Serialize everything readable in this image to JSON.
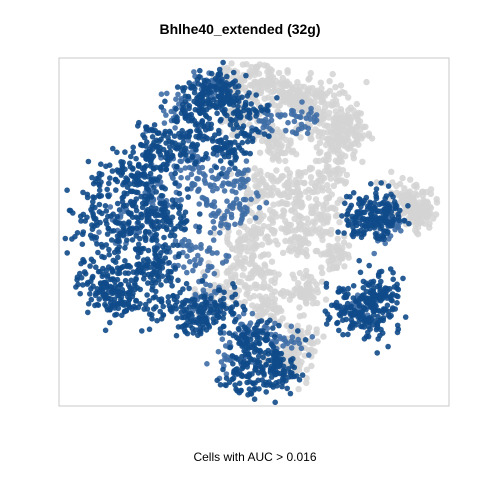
{
  "chart_data": {
    "type": "scatter",
    "title": "Bhlhe40_extended (32g)",
    "xlabel": "Cells with AUC > 0.016",
    "ylabel": "",
    "grid": false,
    "axes_ticks": false,
    "colors": {
      "active": "#0f4a8a",
      "mid": "#3f6ea6",
      "inactive": "#d4d4d4",
      "frame": "#c8c8c8"
    },
    "series": [
      {
        "color": "#d4d4d4",
        "points": [
          [
            235,
            82,
            10
          ],
          [
            260,
            78,
            9
          ],
          [
            282,
            95,
            10
          ],
          [
            300,
            98,
            12
          ],
          [
            318,
            108,
            14
          ],
          [
            335,
            118,
            14
          ],
          [
            340,
            140,
            14
          ],
          [
            328,
            165,
            12
          ],
          [
            300,
            190,
            12
          ],
          [
            282,
            210,
            14
          ],
          [
            320,
            212,
            12
          ],
          [
            302,
            240,
            12
          ],
          [
            255,
            230,
            14
          ],
          [
            240,
            250,
            12
          ],
          [
            218,
            290,
            12
          ],
          [
            258,
            275,
            12
          ],
          [
            270,
            305,
            10
          ],
          [
            305,
            290,
            8
          ],
          [
            335,
            255,
            8
          ],
          [
            405,
            200,
            10
          ],
          [
            420,
            215,
            8
          ],
          [
            415,
            205,
            8
          ],
          [
            300,
            340,
            10
          ],
          [
            290,
            360,
            10
          ],
          [
            260,
            185,
            12
          ],
          [
            350,
            130,
            10
          ],
          [
            238,
            120,
            10
          ],
          [
            272,
            140,
            10
          ]
        ]
      },
      {
        "color": "#3f6ea6",
        "points": [
          [
            178,
            172,
            14
          ],
          [
            205,
            185,
            12
          ],
          [
            190,
            160,
            12
          ],
          [
            175,
            250,
            12
          ],
          [
            205,
            260,
            12
          ],
          [
            235,
            180,
            10
          ],
          [
            220,
            220,
            12
          ],
          [
            245,
            205,
            10
          ],
          [
            180,
            110,
            10
          ],
          [
            250,
            330,
            10
          ],
          [
            285,
            345,
            10
          ],
          [
            230,
            360,
            10
          ],
          [
            200,
            300,
            12
          ],
          [
            155,
            200,
            10
          ],
          [
            120,
            225,
            10
          ],
          [
            365,
            305,
            8
          ],
          [
            210,
            85,
            8
          ],
          [
            265,
            120,
            8
          ],
          [
            300,
            120,
            8
          ],
          [
            390,
            225,
            8
          ]
        ]
      },
      {
        "color": "#0f4a8a",
        "points": [
          [
            92,
            215,
            18
          ],
          [
            108,
            255,
            18
          ],
          [
            135,
            195,
            16
          ],
          [
            120,
            180,
            14
          ],
          [
            152,
            160,
            16
          ],
          [
            160,
            150,
            14
          ],
          [
            145,
            230,
            14
          ],
          [
            165,
            215,
            14
          ],
          [
            135,
            280,
            14
          ],
          [
            170,
            300,
            14
          ],
          [
            100,
            290,
            12
          ],
          [
            160,
            260,
            12
          ],
          [
            210,
            90,
            14
          ],
          [
            195,
            105,
            12
          ],
          [
            225,
            100,
            12
          ],
          [
            245,
            115,
            10
          ],
          [
            262,
            358,
            16
          ],
          [
            245,
            375,
            12
          ],
          [
            280,
            370,
            10
          ],
          [
            255,
            340,
            10
          ],
          [
            365,
            300,
            14
          ],
          [
            375,
            320,
            12
          ],
          [
            380,
            290,
            10
          ],
          [
            348,
            310,
            10
          ],
          [
            375,
            210,
            12
          ],
          [
            385,
            220,
            10
          ],
          [
            360,
            220,
            10
          ],
          [
            195,
            140,
            12
          ],
          [
            230,
            150,
            10
          ],
          [
            220,
            310,
            12
          ],
          [
            195,
            320,
            10
          ],
          [
            118,
            300,
            10
          ]
        ]
      }
    ]
  }
}
